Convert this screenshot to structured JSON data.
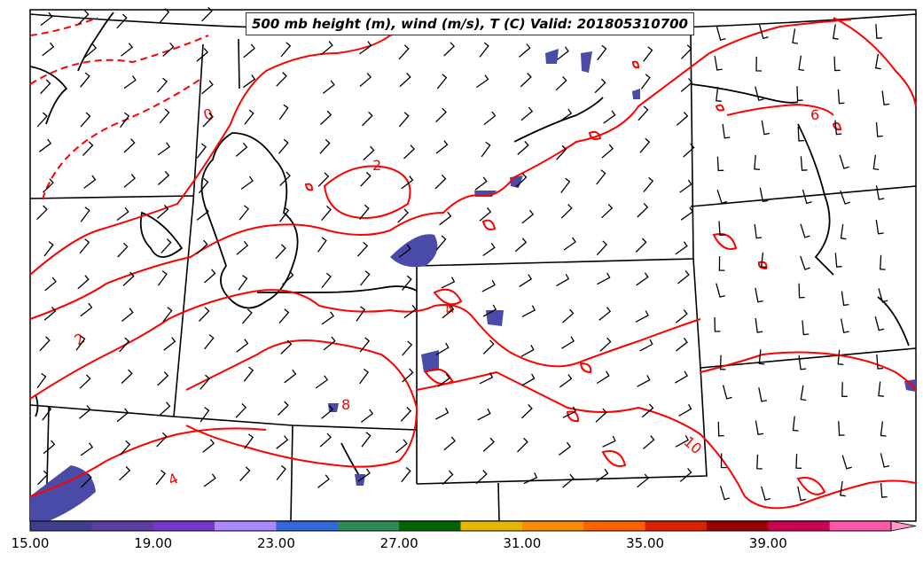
{
  "title": "500 mb height (m), wind (m/s), T (C) Valid: 201805310700",
  "contour_labels": [
    "0",
    "2",
    "2",
    "4",
    "4",
    "6",
    "8",
    "10"
  ],
  "colorbar": {
    "ticks": [
      "15.00",
      "19.00",
      "23.00",
      "27.00",
      "31.00",
      "35.00",
      "39.00"
    ],
    "colors": [
      "#3f3f8f",
      "#5a3fa0",
      "#7a33cc",
      "#aa88ff",
      "#3366dd",
      "#2e8b57",
      "#006400",
      "#e6b800",
      "#ff8c00",
      "#ff6000",
      "#dd2200",
      "#990000",
      "#cc0055",
      "#ff55aa",
      "#ff99cc"
    ]
  },
  "colors": {
    "temperature_contour": "#ff0000",
    "height_contour": "#000000",
    "wind_barb": "#000000",
    "precip_fill": "#4a4aa8"
  }
}
